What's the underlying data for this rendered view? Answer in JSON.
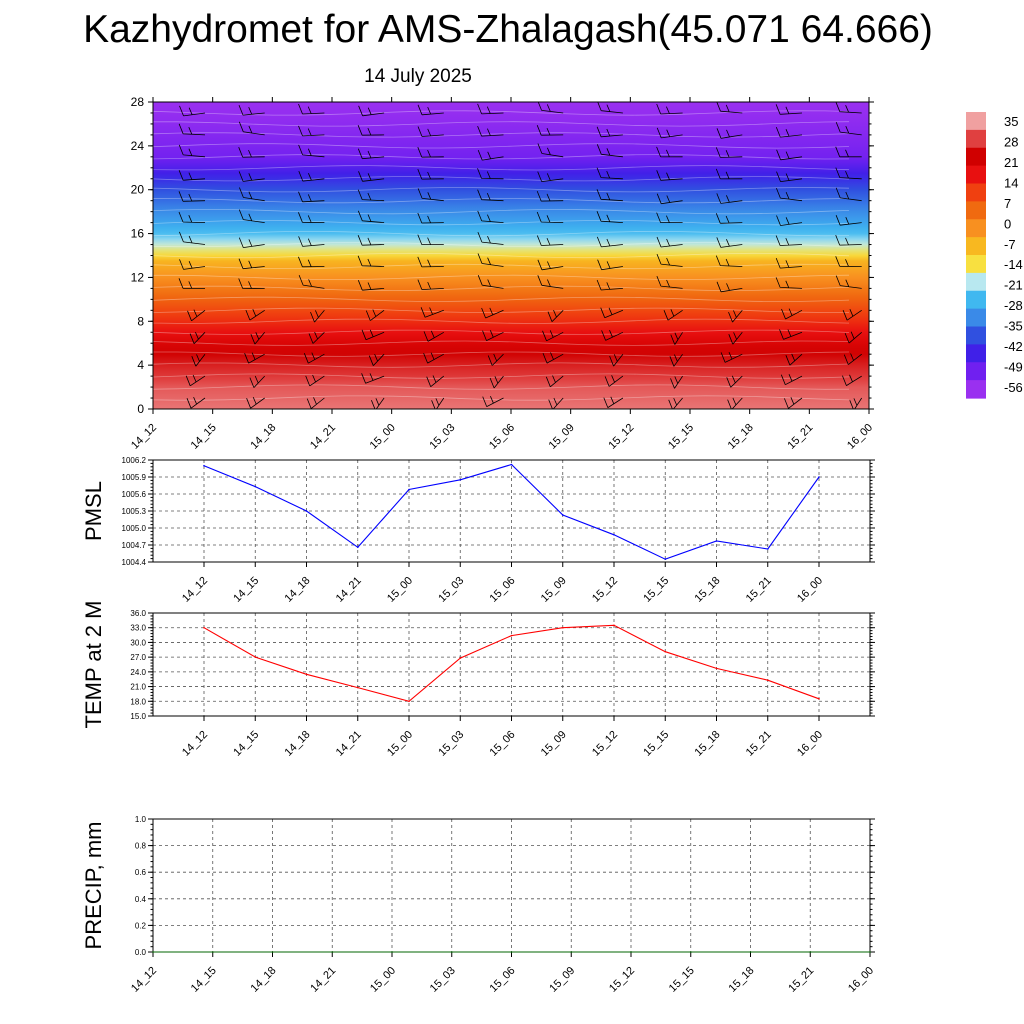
{
  "title": "Kazhydromet for AMS-Zhalagash(45.071 64.666)",
  "subtitle": "14 July 2025",
  "chart_data": [
    {
      "type": "heatmap",
      "description_of_field": "time-height cross-section of temperature with wind barbs",
      "x_ticks": [
        "14_12",
        "14_15",
        "14_18",
        "14_21",
        "15_00",
        "15_03",
        "15_06",
        "15_09",
        "15_12",
        "15_15",
        "15_18",
        "15_21",
        "16_00"
      ],
      "y_ticks": [
        0,
        4,
        8,
        12,
        16,
        20,
        24,
        28
      ],
      "ylim": [
        0,
        28
      ],
      "colorbar_labels": [
        "35",
        "28",
        "21",
        "14",
        "7",
        "0",
        "-7",
        "-14",
        "-21",
        "-28",
        "-35",
        "-42",
        "-49",
        "-56"
      ],
      "colorbar_colors": [
        "#f0a0a0",
        "#e04040",
        "#d00000",
        "#e81010",
        "#f04010",
        "#f06a10",
        "#f89020",
        "#f8b820",
        "#f8e040",
        "#b8e8f0",
        "#40b8f0",
        "#3a8ae8",
        "#3050e0",
        "#4020e8",
        "#7020f0",
        "#9a30f0"
      ],
      "profile": [
        {
          "h": 0,
          "t": 35
        },
        {
          "h": 2,
          "t": 33
        },
        {
          "h": 4,
          "t": 28
        },
        {
          "h": 6,
          "t": 22
        },
        {
          "h": 8,
          "t": 14
        },
        {
          "h": 10,
          "t": 6
        },
        {
          "h": 12,
          "t": -2
        },
        {
          "h": 13.5,
          "t": -8
        },
        {
          "h": 14,
          "t": -14
        },
        {
          "h": 15,
          "t": -21
        },
        {
          "h": 16,
          "t": -28
        },
        {
          "h": 18,
          "t": -35
        },
        {
          "h": 20,
          "t": -42
        },
        {
          "h": 21.5,
          "t": -49
        },
        {
          "h": 23,
          "t": -56
        },
        {
          "h": 26,
          "t": -60
        },
        {
          "h": 28,
          "t": -62
        }
      ],
      "barb_heights": [
        1,
        3,
        5,
        7,
        9,
        11,
        13,
        15,
        17,
        19,
        21,
        23,
        25,
        27
      ]
    },
    {
      "type": "line",
      "ylabel": "PMSL",
      "categories": [
        "14_12",
        "14_15",
        "14_18",
        "14_21",
        "15_00",
        "15_03",
        "15_06",
        "15_09",
        "15_12",
        "15_15",
        "15_18",
        "15_21",
        "16_00"
      ],
      "yticks": [
        "1006.2",
        "1005.9",
        "1005.6",
        "1005.3",
        "1005.0",
        "1004.7",
        "1004.4"
      ],
      "ylim": [
        1004.4,
        1006.2
      ],
      "series": [
        {
          "values": [
            1006.1,
            1005.73,
            1005.3,
            1004.66,
            1005.68,
            1005.85,
            1006.12,
            1005.23,
            1004.88,
            1004.45,
            1004.77,
            1004.63,
            1005.9
          ],
          "color": "#0000ff"
        }
      ],
      "grid": true
    },
    {
      "type": "line",
      "ylabel": "TEMP at 2 M",
      "categories": [
        "14_12",
        "14_15",
        "14_18",
        "14_21",
        "15_00",
        "15_03",
        "15_06",
        "15_09",
        "15_12",
        "15_15",
        "15_18",
        "15_21",
        "16_00"
      ],
      "yticks": [
        "36.0",
        "33.0",
        "30.0",
        "27.0",
        "24.0",
        "21.0",
        "18.0",
        "15.0"
      ],
      "ylim": [
        15,
        36
      ],
      "series": [
        {
          "values": [
            33.0,
            27.0,
            23.5,
            20.8,
            18.0,
            26.8,
            31.4,
            33.0,
            33.5,
            28.1,
            24.7,
            22.3,
            18.5
          ],
          "color": "#ff0000"
        }
      ],
      "grid": true
    },
    {
      "type": "line",
      "ylabel": "PRECIP, mm",
      "categories": [
        "14_12",
        "14_15",
        "14_18",
        "14_21",
        "15_00",
        "15_03",
        "15_06",
        "15_09",
        "15_12",
        "15_15",
        "15_18",
        "15_21",
        "16_00"
      ],
      "yticks": [
        "1.0",
        "0.8",
        "0.6",
        "0.4",
        "0.2",
        "0.0"
      ],
      "ylim": [
        0,
        1
      ],
      "series": [
        {
          "values": [
            0,
            0,
            0,
            0,
            0,
            0,
            0,
            0,
            0,
            0,
            0,
            0,
            0
          ],
          "color": "#006400"
        }
      ],
      "grid": true
    }
  ]
}
